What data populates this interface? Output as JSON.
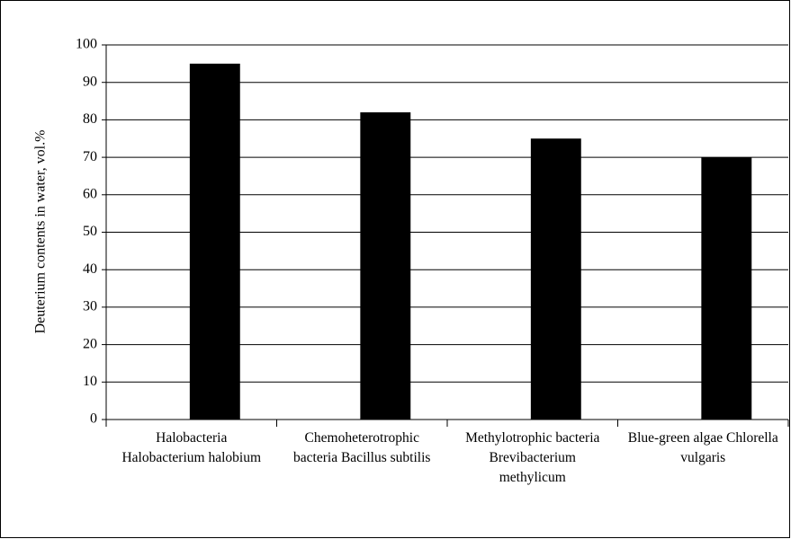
{
  "chart_data": {
    "type": "bar",
    "y_label": "Deuterium contents in water, vol.%",
    "categories": [
      "Halobacteria Halobacterium halobium",
      "Chemoheterotrophic bacteria Bacillus subtilis",
      "Methylotrophic bacteria Brevibacterium methylicum",
      "Blue-green algae Chlorella vulgaris"
    ],
    "values": [
      95,
      82,
      75,
      70
    ],
    "color": "#000000",
    "ylim": [
      0,
      100
    ],
    "yticks": [
      0,
      10,
      20,
      30,
      40,
      50,
      60,
      70,
      80,
      90,
      100
    ],
    "grid": true
  }
}
